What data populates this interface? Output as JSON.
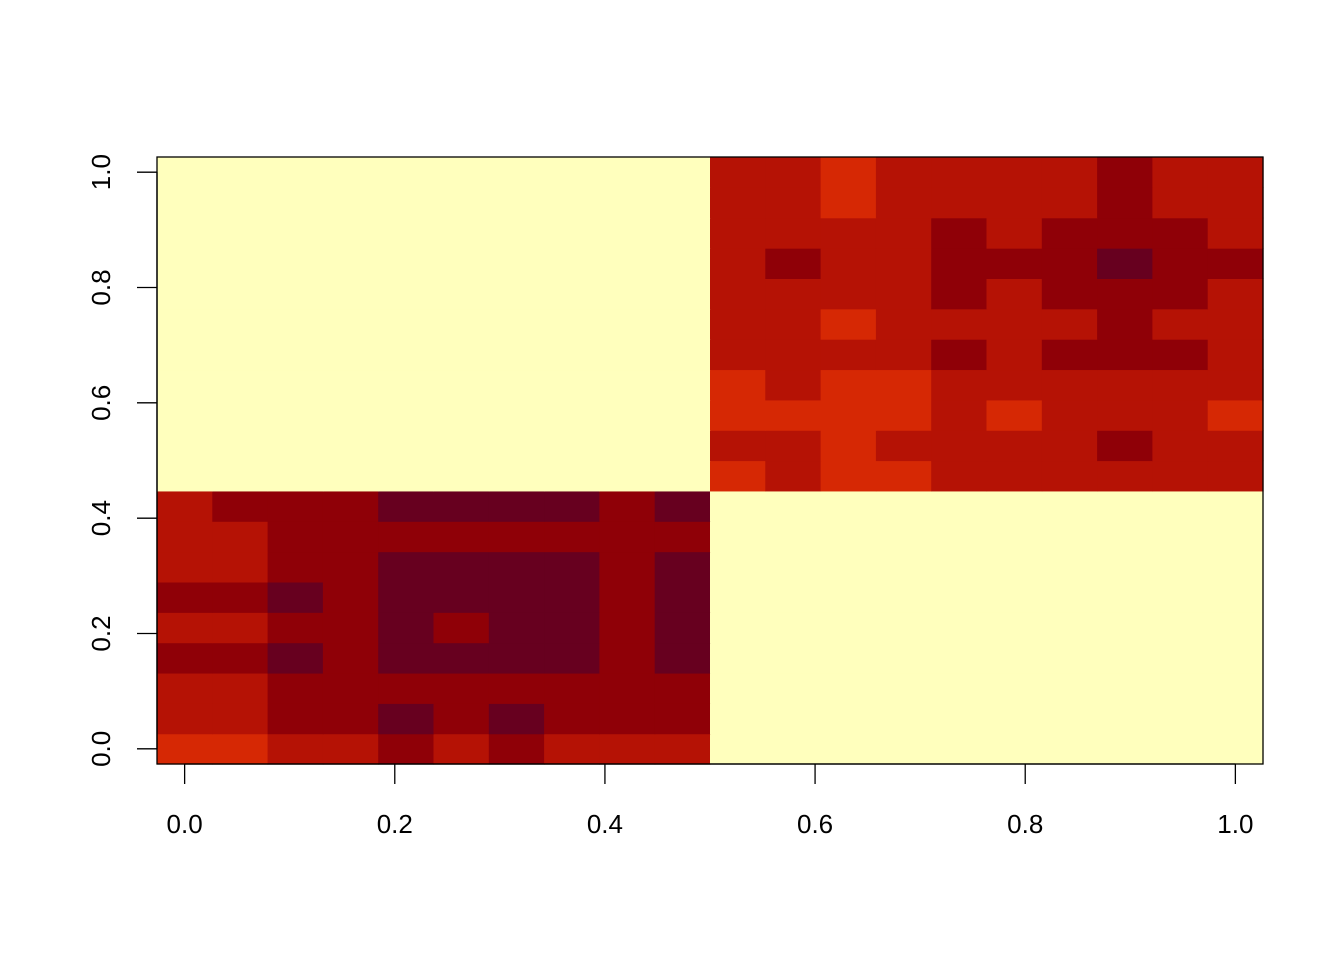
{
  "chart_data": {
    "type": "heatmap",
    "title": "",
    "xlabel": "",
    "ylabel": "",
    "xlim": [
      -0.0263,
      1.0263
    ],
    "ylim": [
      -0.0263,
      1.0263
    ],
    "x_ticks": [
      0.0,
      0.2,
      0.4,
      0.6,
      0.8,
      1.0
    ],
    "x_tick_labels": [
      "0.0",
      "0.2",
      "0.4",
      "0.6",
      "0.8",
      "1.0"
    ],
    "y_ticks": [
      0.0,
      0.2,
      0.4,
      0.6,
      0.8,
      1.0
    ],
    "y_tick_labels": [
      "0.0",
      "0.2",
      "0.4",
      "0.6",
      "0.8",
      "1.0"
    ],
    "grid": false,
    "legend": "none",
    "n_cols": 20,
    "n_rows": 20,
    "palette": [
      "#67001F",
      "#8F0007",
      "#B51205",
      "#D62804",
      "#FFFFBD"
    ],
    "matrix_bottom_to_top": [
      [
        3,
        3,
        2,
        2,
        1,
        2,
        1,
        2,
        2,
        2,
        4,
        4,
        4,
        4,
        4,
        4,
        4,
        4,
        4,
        4
      ],
      [
        2,
        2,
        1,
        1,
        0,
        1,
        0,
        1,
        1,
        1,
        4,
        4,
        4,
        4,
        4,
        4,
        4,
        4,
        4,
        4
      ],
      [
        2,
        2,
        1,
        1,
        1,
        1,
        1,
        1,
        1,
        1,
        4,
        4,
        4,
        4,
        4,
        4,
        4,
        4,
        4,
        4
      ],
      [
        1,
        1,
        0,
        1,
        0,
        0,
        0,
        0,
        1,
        0,
        4,
        4,
        4,
        4,
        4,
        4,
        4,
        4,
        4,
        4
      ],
      [
        2,
        2,
        1,
        1,
        0,
        1,
        0,
        0,
        1,
        0,
        4,
        4,
        4,
        4,
        4,
        4,
        4,
        4,
        4,
        4
      ],
      [
        1,
        1,
        0,
        1,
        0,
        0,
        0,
        0,
        1,
        0,
        4,
        4,
        4,
        4,
        4,
        4,
        4,
        4,
        4,
        4
      ],
      [
        2,
        2,
        1,
        1,
        0,
        0,
        0,
        0,
        1,
        0,
        4,
        4,
        4,
        4,
        4,
        4,
        4,
        4,
        4,
        4
      ],
      [
        2,
        2,
        1,
        1,
        1,
        1,
        1,
        1,
        1,
        1,
        4,
        4,
        4,
        4,
        4,
        4,
        4,
        4,
        4,
        4
      ],
      [
        2,
        1,
        1,
        1,
        0,
        0,
        0,
        0,
        1,
        0,
        4,
        4,
        4,
        4,
        4,
        4,
        4,
        4,
        4,
        4
      ],
      [
        4,
        4,
        4,
        4,
        4,
        4,
        4,
        4,
        4,
        4,
        3,
        2,
        3,
        3,
        2,
        2,
        2,
        2,
        2,
        2
      ],
      [
        4,
        4,
        4,
        4,
        4,
        4,
        4,
        4,
        4,
        4,
        2,
        2,
        3,
        2,
        2,
        2,
        2,
        1,
        2,
        2
      ],
      [
        4,
        4,
        4,
        4,
        4,
        4,
        4,
        4,
        4,
        4,
        3,
        3,
        3,
        3,
        2,
        3,
        2,
        2,
        2,
        3
      ],
      [
        4,
        4,
        4,
        4,
        4,
        4,
        4,
        4,
        4,
        4,
        3,
        2,
        3,
        3,
        2,
        2,
        2,
        2,
        2,
        2
      ],
      [
        4,
        4,
        4,
        4,
        4,
        4,
        4,
        4,
        4,
        4,
        2,
        2,
        2,
        2,
        1,
        2,
        1,
        1,
        1,
        2
      ],
      [
        4,
        4,
        4,
        4,
        4,
        4,
        4,
        4,
        4,
        4,
        2,
        2,
        3,
        2,
        2,
        2,
        2,
        1,
        2,
        2
      ],
      [
        4,
        4,
        4,
        4,
        4,
        4,
        4,
        4,
        4,
        4,
        2,
        2,
        2,
        2,
        1,
        2,
        1,
        1,
        1,
        2
      ],
      [
        4,
        4,
        4,
        4,
        4,
        4,
        4,
        4,
        4,
        4,
        2,
        1,
        2,
        2,
        1,
        1,
        1,
        0,
        1,
        1
      ],
      [
        4,
        4,
        4,
        4,
        4,
        4,
        4,
        4,
        4,
        4,
        2,
        2,
        2,
        2,
        1,
        2,
        1,
        1,
        1,
        2
      ],
      [
        4,
        4,
        4,
        4,
        4,
        4,
        4,
        4,
        4,
        4,
        2,
        2,
        3,
        2,
        2,
        2,
        2,
        1,
        2,
        2
      ],
      [
        4,
        4,
        4,
        4,
        4,
        4,
        4,
        4,
        4,
        4,
        2,
        2,
        3,
        2,
        2,
        2,
        2,
        1,
        2,
        2
      ]
    ]
  }
}
